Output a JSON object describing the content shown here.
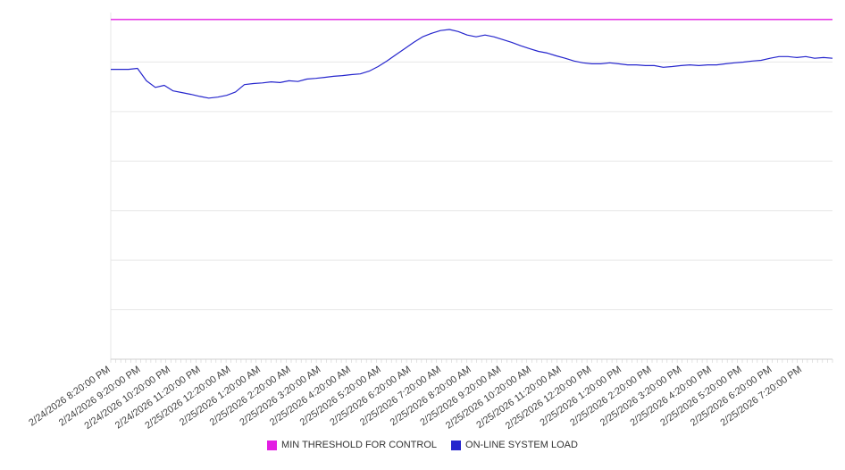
{
  "chart_data": {
    "type": "line",
    "title": "",
    "xlabel": "",
    "ylabel": "",
    "ylim": [
      0,
      100
    ],
    "grid": true,
    "gridline_count": 7,
    "legend_position": "bottom",
    "x_tick_labels": [
      "2/24/2026 8:20:00 PM",
      "2/24/2026 9:20:00 PM",
      "2/24/2026 10:20:00 PM",
      "2/24/2026 11:20:00 PM",
      "2/25/2026 12:20:00 AM",
      "2/25/2026 1:20:00 AM",
      "2/25/2026 2:20:00 AM",
      "2/25/2026 3:20:00 AM",
      "2/25/2026 4:20:00 AM",
      "2/25/2026 5:20:00 AM",
      "2/25/2026 6:20:00 AM",
      "2/25/2026 7:20:00 AM",
      "2/25/2026 8:20:00 AM",
      "2/25/2026 9:20:00 AM",
      "2/25/2026 10:20:00 AM",
      "2/25/2026 11:20:00 AM",
      "2/25/2026 12:20:00 PM",
      "2/25/2026 1:20:00 PM",
      "2/25/2026 2:20:00 PM",
      "2/25/2026 3:20:00 PM",
      "2/25/2026 4:20:00 PM",
      "2/25/2026 5:20:00 PM",
      "2/25/2026 6:20:00 PM",
      "2/25/2026 7:20:00 PM"
    ],
    "series": [
      {
        "name": "MIN THRESHOLD FOR CONTROL",
        "type": "threshold",
        "color": "#e31ee3",
        "value": 98
      },
      {
        "name": "ON-LINE SYSTEM LOAD",
        "type": "line",
        "color": "#2626cd",
        "values": [
          83.6,
          83.6,
          83.6,
          83.9,
          80.3,
          78.4,
          79.0,
          77.4,
          76.9,
          76.4,
          75.8,
          75.3,
          75.6,
          76.1,
          77.1,
          79.2,
          79.5,
          79.7,
          80.0,
          79.8,
          80.3,
          80.1,
          80.8,
          81.0,
          81.3,
          81.6,
          81.8,
          82.1,
          82.3,
          83.1,
          84.4,
          86.0,
          87.8,
          89.6,
          91.4,
          93.0,
          94.0,
          94.8,
          95.1,
          94.5,
          93.5,
          93.0,
          93.5,
          93.0,
          92.2,
          91.4,
          90.4,
          89.6,
          88.8,
          88.3,
          87.5,
          86.8,
          86.0,
          85.5,
          85.2,
          85.2,
          85.5,
          85.2,
          84.9,
          84.9,
          84.7,
          84.7,
          84.2,
          84.4,
          84.7,
          84.9,
          84.7,
          84.9,
          84.9,
          85.2,
          85.5,
          85.7,
          86.0,
          86.2,
          86.8,
          87.3,
          87.3,
          87.0,
          87.3,
          86.8,
          87.0,
          86.8
        ]
      }
    ]
  }
}
